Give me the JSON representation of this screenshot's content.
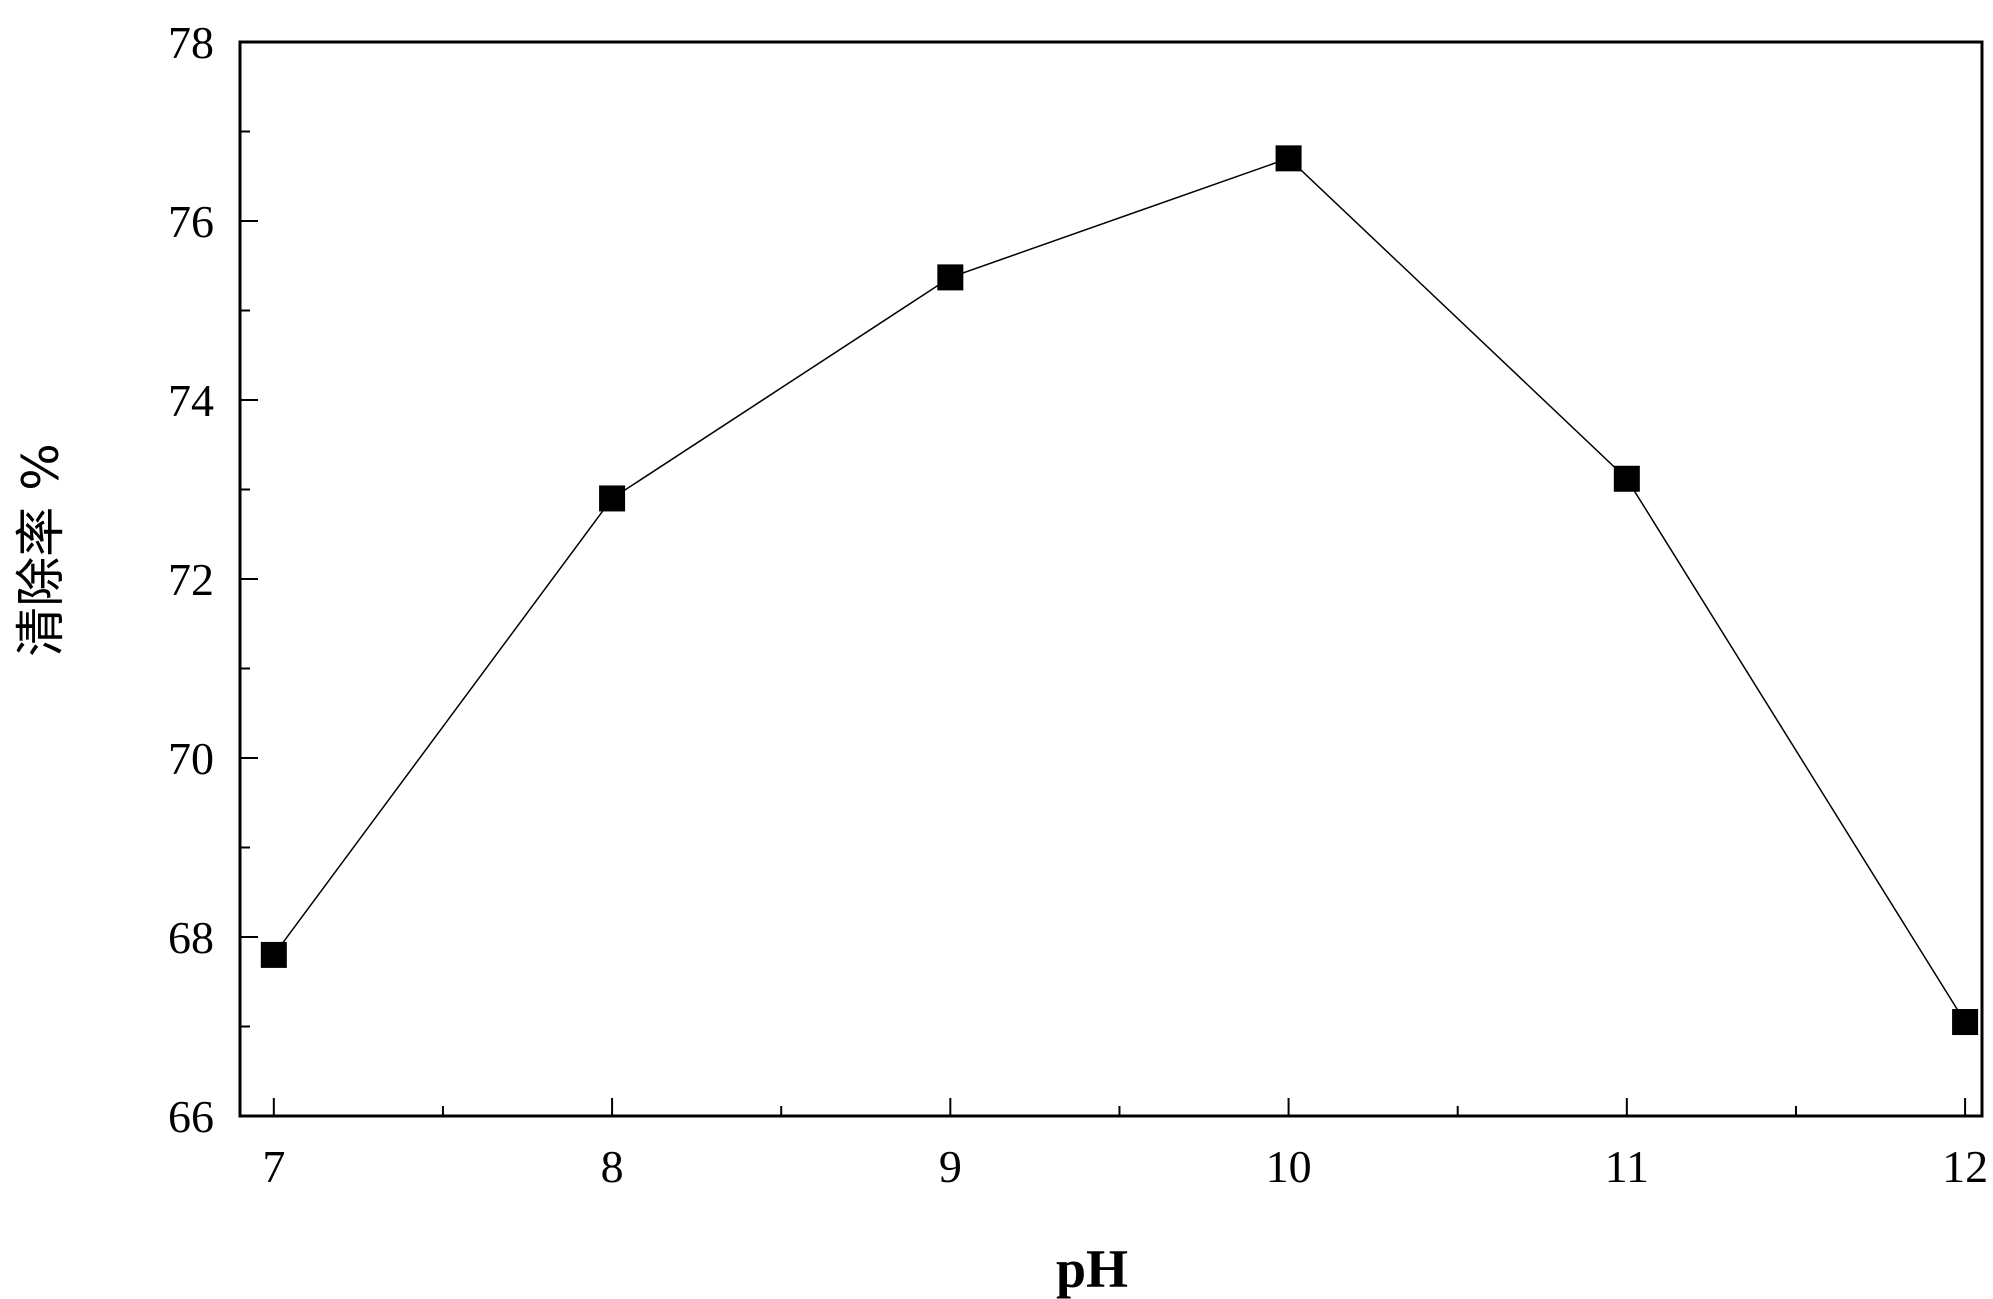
{
  "chart_data": {
    "type": "line",
    "xlabel": "pH",
    "ylabel": "清除率 %",
    "xlim": [
      6.9,
      12.05
    ],
    "ylim": [
      66,
      78
    ],
    "x_ticks": [
      7,
      8,
      9,
      10,
      11,
      12
    ],
    "x_tick_labels": [
      "7",
      "8",
      "9",
      "10",
      "11",
      "12"
    ],
    "y_ticks": [
      66,
      68,
      70,
      72,
      74,
      76,
      78
    ],
    "y_tick_labels": [
      "66",
      "68",
      "70",
      "72",
      "74",
      "76",
      "78"
    ],
    "marker": "square",
    "grid": false,
    "legend": "none",
    "series": [
      {
        "x": [
          7,
          8,
          9,
          10,
          11,
          12
        ],
        "values": [
          67.8,
          72.9,
          75.37,
          76.7,
          73.12,
          67.05
        ],
        "color": "#000000"
      }
    ]
  }
}
